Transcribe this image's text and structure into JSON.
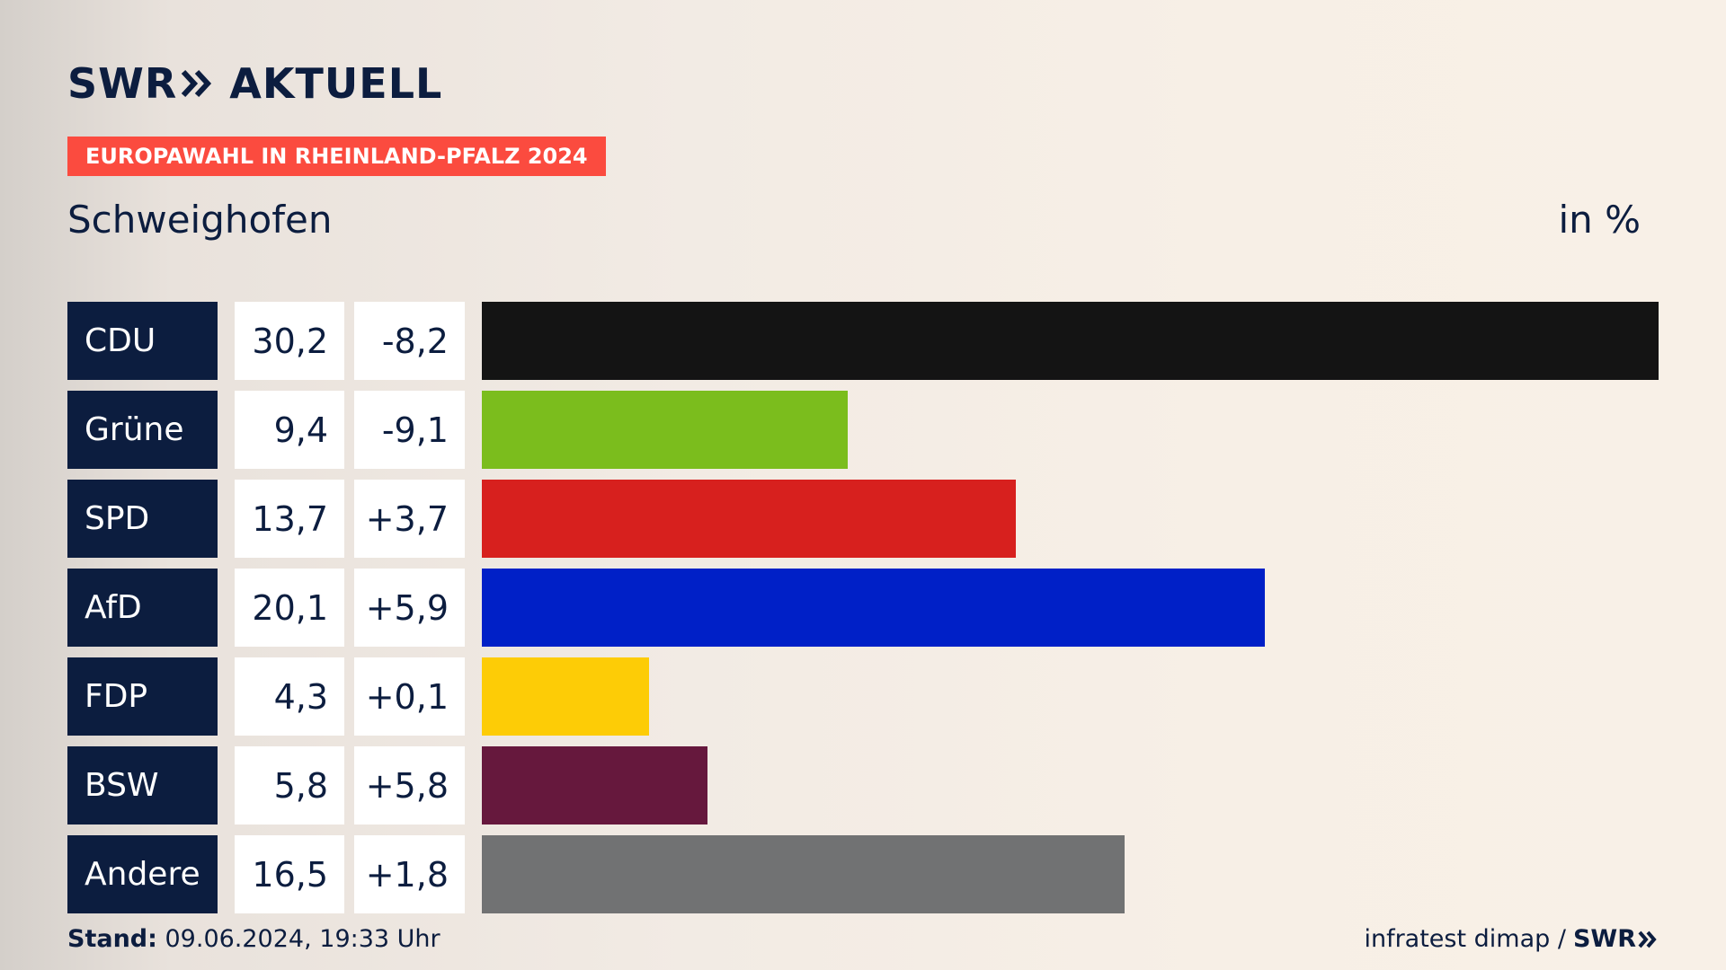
{
  "brand": {
    "swr": "SWR",
    "aktuell": "AKTUELL"
  },
  "tag": "EUROPAWAHL IN RHEINLAND-PFALZ 2024",
  "place": "Schweighofen",
  "unit": "in %",
  "footer": {
    "stand_label": "Stand:",
    "stand_value": " 09.06.2024, 19:33 Uhr",
    "source": "infratest dimap /",
    "source_brand": "SWR"
  },
  "colors": {
    "navy": "#0c1d3f",
    "tag": "#fb4b3f"
  },
  "chart_data": {
    "type": "bar",
    "orientation": "horizontal",
    "categories": [
      "CDU",
      "Grüne",
      "SPD",
      "AfD",
      "FDP",
      "BSW",
      "Andere"
    ],
    "values": [
      30.2,
      9.4,
      13.7,
      20.1,
      4.3,
      5.8,
      16.5
    ],
    "value_labels": [
      "30,2",
      "9,4",
      "13,7",
      "20,1",
      "4,3",
      "5,8",
      "16,5"
    ],
    "diff_labels": [
      "-8,2",
      "-9,1",
      "+3,7",
      "+5,9",
      "+0,1",
      "+5,8",
      "+1,8"
    ],
    "colors": [
      "#141414",
      "#7bbd1d",
      "#d7201e",
      "#0020c7",
      "#fdcc06",
      "#66183d",
      "#717273"
    ],
    "xlim": [
      0,
      30.2
    ]
  }
}
